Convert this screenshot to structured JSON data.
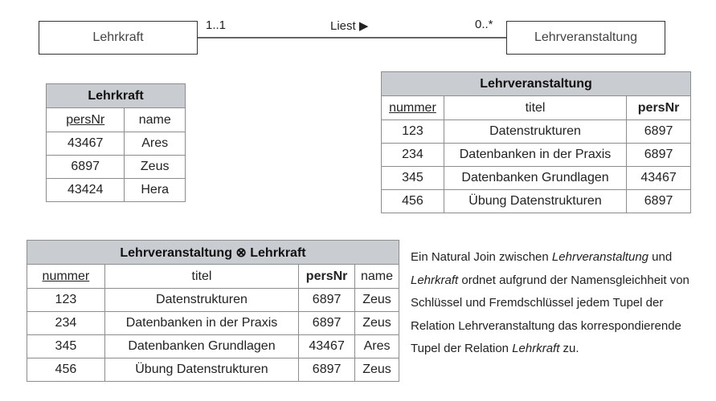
{
  "er": {
    "entity1": "Lehrkraft",
    "entity2": "Lehrveranstaltung",
    "relation_label": "Liest ▶",
    "card_left": "1..1",
    "card_right": "0..*"
  },
  "table_lehrkraft": {
    "title": "Lehrkraft",
    "headers": [
      "persNr",
      "name"
    ],
    "rows": [
      [
        "43467",
        "Ares"
      ],
      [
        "6897",
        "Zeus"
      ],
      [
        "43424",
        "Hera"
      ]
    ]
  },
  "table_lehrveranstaltung": {
    "title": "Lehrveranstaltung",
    "headers": [
      "nummer",
      "titel",
      "persNr"
    ],
    "rows": [
      [
        "123",
        "Datenstrukturen",
        "6897"
      ],
      [
        "234",
        "Datenbanken in der Praxis",
        "6897"
      ],
      [
        "345",
        "Datenbanken Grundlagen",
        "43467"
      ],
      [
        "456",
        "Übung Datenstrukturen",
        "6897"
      ]
    ]
  },
  "table_join": {
    "title": "Lehrveranstaltung ⊗ Lehrkraft",
    "headers": [
      "nummer",
      "titel",
      "persNr",
      "name"
    ],
    "rows": [
      [
        "123",
        "Datenstrukturen",
        "6897",
        "Zeus"
      ],
      [
        "234",
        "Datenbanken in der Praxis",
        "6897",
        "Zeus"
      ],
      [
        "345",
        "Datenbanken Grundlagen",
        "43467",
        "Ares"
      ],
      [
        "456",
        "Übung Datenstrukturen",
        "6897",
        "Zeus"
      ]
    ]
  },
  "note": {
    "t1": "Ein Natural Join zwischen ",
    "i1": "Lehrveranstaltung",
    "t2": " und ",
    "i2": "Lehrkraft",
    "t3": " ordnet aufgrund der Namensgleichheit von Schlüssel und Fremdschlüssel jedem Tupel der Relation Lehrveranstaltung das korrespondierende Tupel der Relation ",
    "i3": "Lehrkraft",
    "t4": " zu."
  }
}
